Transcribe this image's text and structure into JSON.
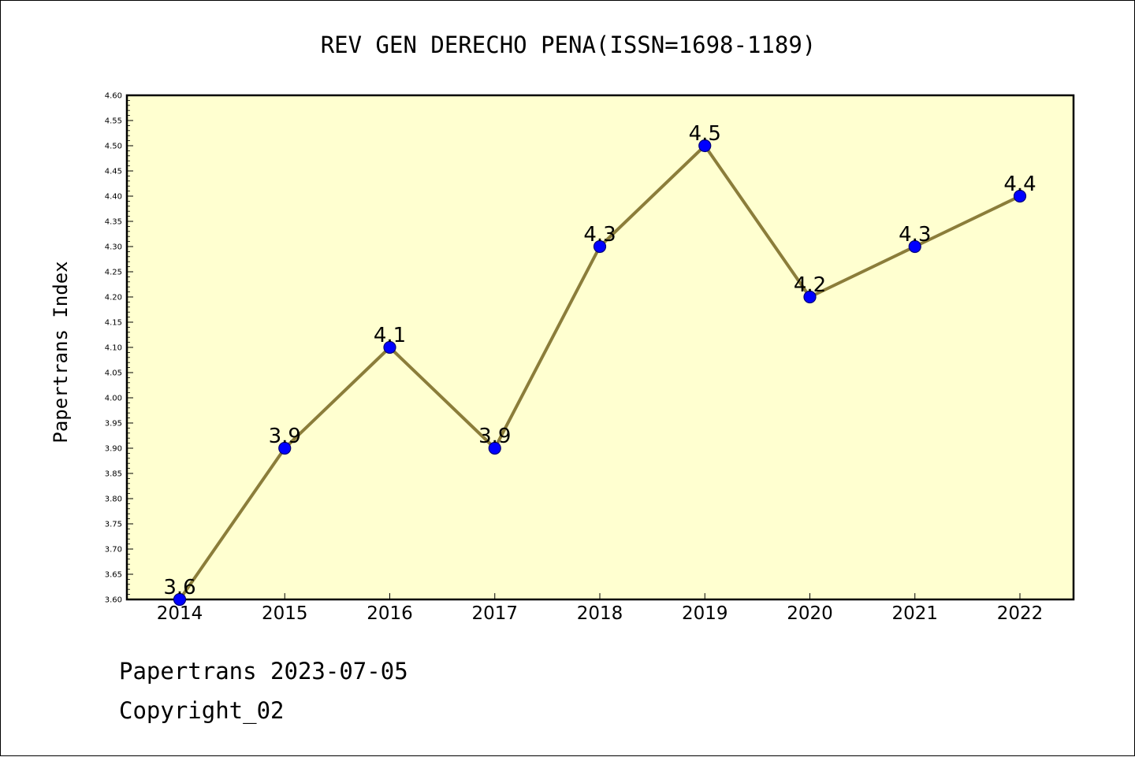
{
  "chart_data": {
    "type": "line",
    "title": "REV GEN DERECHO PENA(ISSN=1698-1189)",
    "xlabel": "",
    "ylabel": "Papertrans Index",
    "categories": [
      "2014",
      "2015",
      "2016",
      "2017",
      "2018",
      "2019",
      "2020",
      "2021",
      "2022"
    ],
    "values": [
      3.6,
      3.9,
      4.1,
      3.9,
      4.3,
      4.5,
      4.2,
      4.3,
      4.4
    ],
    "data_labels": [
      "3.6",
      "3.9",
      "4.1",
      "3.9",
      "4.3",
      "4.5",
      "4.2",
      "4.3",
      "4.4"
    ],
    "ylim": [
      3.6,
      4.6
    ],
    "y_ticks": [
      "3.60",
      "3.65",
      "3.70",
      "3.75",
      "3.80",
      "3.85",
      "3.90",
      "3.95",
      "4.00",
      "4.05",
      "4.10",
      "4.15",
      "4.20",
      "4.25",
      "4.30",
      "4.35",
      "4.40",
      "4.45",
      "4.50",
      "4.55",
      "4.60"
    ],
    "grid": false,
    "legend": "none",
    "colors": {
      "plot_background": "#ffffd0",
      "line": "#8b7d3a",
      "marker": "#0000ff"
    }
  },
  "footer": {
    "line1": "Papertrans 2023-07-05",
    "line2": "Copyright_02"
  }
}
